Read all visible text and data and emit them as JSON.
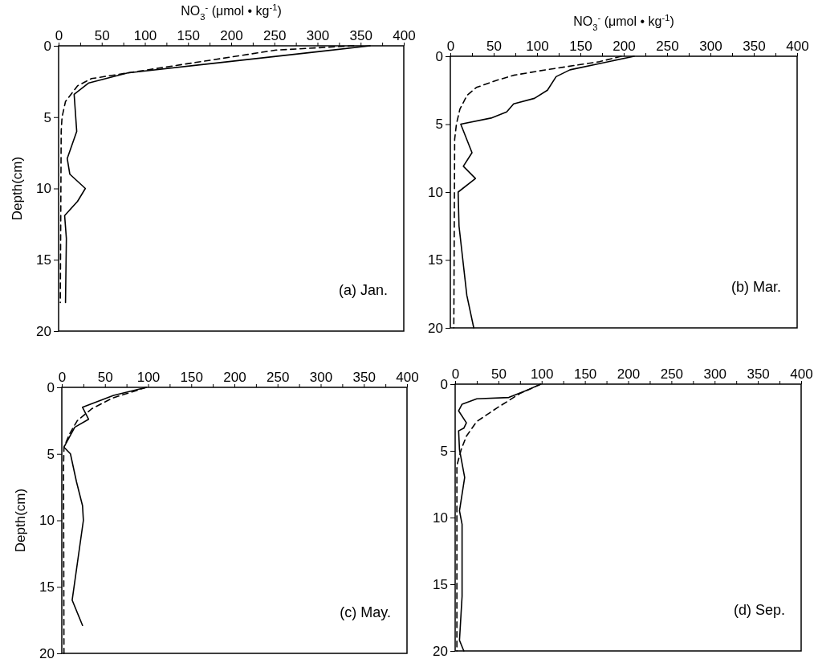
{
  "chart_data": [
    {
      "type": "line",
      "xlabel": "NO$_{3}$$^{-}$ (μmol • kg$^{-1}$)",
      "ylabel": "Depth(cm)",
      "annotations": [
        "(a) Jan."
      ],
      "xlim": [
        0,
        400
      ],
      "ylim": [
        20,
        0
      ],
      "xticks": [
        0,
        {
          "value": 25,
          "label": null
        },
        50,
        {
          "value": 75,
          "label": null
        },
        100,
        {
          "value": 125,
          "label": null
        },
        150,
        {
          "value": 175,
          "label": null
        },
        200,
        {
          "value": 225,
          "label": null
        },
        250,
        {
          "value": 275,
          "label": null
        },
        300,
        {
          "value": 325,
          "label": null
        },
        350,
        {
          "value": 375,
          "label": null
        },
        400
      ],
      "yticks": [
        0,
        5,
        10,
        15,
        20
      ],
      "grid": false,
      "marker": "none",
      "series": [
        {
          "color": "#000000",
          "line_style": "solid",
          "x": [
            361,
            302,
            80,
            35,
            18,
            21,
            10,
            13,
            31,
            22,
            7,
            9,
            8
          ],
          "values": [
            0,
            0.4,
            1.9,
            2.6,
            3.4,
            6,
            7.9,
            9,
            10,
            10.9,
            11.9,
            13.5,
            18
          ]
        },
        {
          "color": "#000000",
          "line_style": "dashed",
          "x": [
            342,
            252,
            80,
            38,
            22,
            8,
            4,
            3,
            2
          ],
          "values": [
            0,
            0.3,
            1.9,
            2.3,
            2.8,
            3.9,
            5,
            6,
            18
          ]
        }
      ]
    },
    {
      "type": "line",
      "xlabel": "NO$_{3}$$^{-}$ (μmol • kg$^{-1}$)",
      "annotations": [
        "(b) Mar."
      ],
      "xlim": [
        0,
        400
      ],
      "ylim": [
        20,
        0
      ],
      "xticks": [
        0,
        {
          "value": 25,
          "label": null
        },
        50,
        {
          "value": 75,
          "label": null
        },
        100,
        {
          "value": 125,
          "label": null
        },
        150,
        {
          "value": 175,
          "label": null
        },
        200,
        {
          "value": 225,
          "label": null
        },
        250,
        {
          "value": 275,
          "label": null
        },
        300,
        {
          "value": 325,
          "label": null
        },
        350,
        {
          "value": 375,
          "label": null
        },
        400
      ],
      "yticks": [
        0,
        5,
        10,
        15,
        20
      ],
      "grid": false,
      "marker": "none",
      "series": [
        {
          "color": "#000000",
          "line_style": "solid",
          "x": [
            212,
            138,
            122,
            112,
            97,
            73,
            65,
            47,
            12,
            25,
            15,
            29,
            9,
            10,
            19,
            27
          ],
          "values": [
            0,
            1,
            1.5,
            2.5,
            3.1,
            3.5,
            4.1,
            4.55,
            5,
            7.1,
            8.1,
            9,
            10,
            12.5,
            17.6,
            20
          ]
        },
        {
          "color": "#000000",
          "line_style": "dashed",
          "x": [
            197,
            172,
            110,
            73,
            52,
            30,
            19,
            11,
            7,
            5,
            4
          ],
          "values": [
            0,
            0.4,
            1,
            1.4,
            1.8,
            2.3,
            2.9,
            3.9,
            5,
            6.1,
            20
          ]
        }
      ]
    },
    {
      "type": "line",
      "ylabel": "Depth(cm)",
      "annotations": [
        "(c) May."
      ],
      "xlim": [
        0,
        400
      ],
      "ylim": [
        20,
        0
      ],
      "xticks": [
        0,
        {
          "value": 25,
          "label": null
        },
        50,
        {
          "value": 75,
          "label": null
        },
        100,
        {
          "value": 125,
          "label": null
        },
        150,
        {
          "value": 175,
          "label": null
        },
        200,
        {
          "value": 225,
          "label": null
        },
        250,
        {
          "value": 275,
          "label": null
        },
        300,
        {
          "value": 325,
          "label": null
        },
        350,
        {
          "value": 375,
          "label": null
        },
        400
      ],
      "yticks": [
        0,
        5,
        10,
        15,
        20
      ],
      "grid": false,
      "marker": "none",
      "series": [
        {
          "color": "#000000",
          "line_style": "solid",
          "x": [
            98,
            60,
            24,
            31,
            15,
            2.5,
            10,
            17,
            24,
            25,
            12,
            24
          ],
          "values": [
            0,
            0.6,
            1.5,
            2.4,
            3,
            4.5,
            5,
            7.1,
            8.9,
            10,
            16,
            17.9
          ]
        },
        {
          "color": "#000000",
          "line_style": "dashed",
          "x": [
            98,
            59,
            35,
            18,
            9,
            2.5,
            2,
            2.5
          ],
          "values": [
            0,
            0.8,
            1.6,
            2.5,
            3.5,
            4.5,
            6,
            20
          ]
        }
      ]
    },
    {
      "type": "line",
      "annotations": [
        "(d) Sep."
      ],
      "xlim": [
        0,
        400
      ],
      "ylim": [
        20,
        0
      ],
      "xticks": [
        0,
        {
          "value": 25,
          "label": null
        },
        50,
        {
          "value": 75,
          "label": null
        },
        100,
        {
          "value": 125,
          "label": null
        },
        150,
        {
          "value": 175,
          "label": null
        },
        200,
        {
          "value": 225,
          "label": null
        },
        250,
        {
          "value": 275,
          "label": null
        },
        300,
        {
          "value": 325,
          "label": null
        },
        350,
        {
          "value": 375,
          "label": null
        },
        400
      ],
      "yticks": [
        0,
        5,
        10,
        15,
        20
      ],
      "grid": false,
      "marker": "none",
      "series": [
        {
          "color": "#000000",
          "line_style": "solid",
          "x": [
            99,
            85,
            62,
            25,
            8,
            4,
            13,
            10,
            4,
            5,
            11,
            5,
            8,
            8,
            5,
            10
          ],
          "values": [
            0,
            0.4,
            1,
            1.1,
            1.5,
            2,
            2.9,
            3.3,
            3.5,
            4.9,
            7,
            9.5,
            10.5,
            15.9,
            19.2,
            20
          ]
        },
        {
          "color": "#000000",
          "line_style": "dashed",
          "x": [
            99,
            75,
            48,
            25,
            13,
            7,
            2,
            2
          ],
          "values": [
            0,
            0.7,
            1.8,
            2.8,
            3.9,
            4.9,
            6.1,
            20
          ]
        }
      ]
    }
  ]
}
